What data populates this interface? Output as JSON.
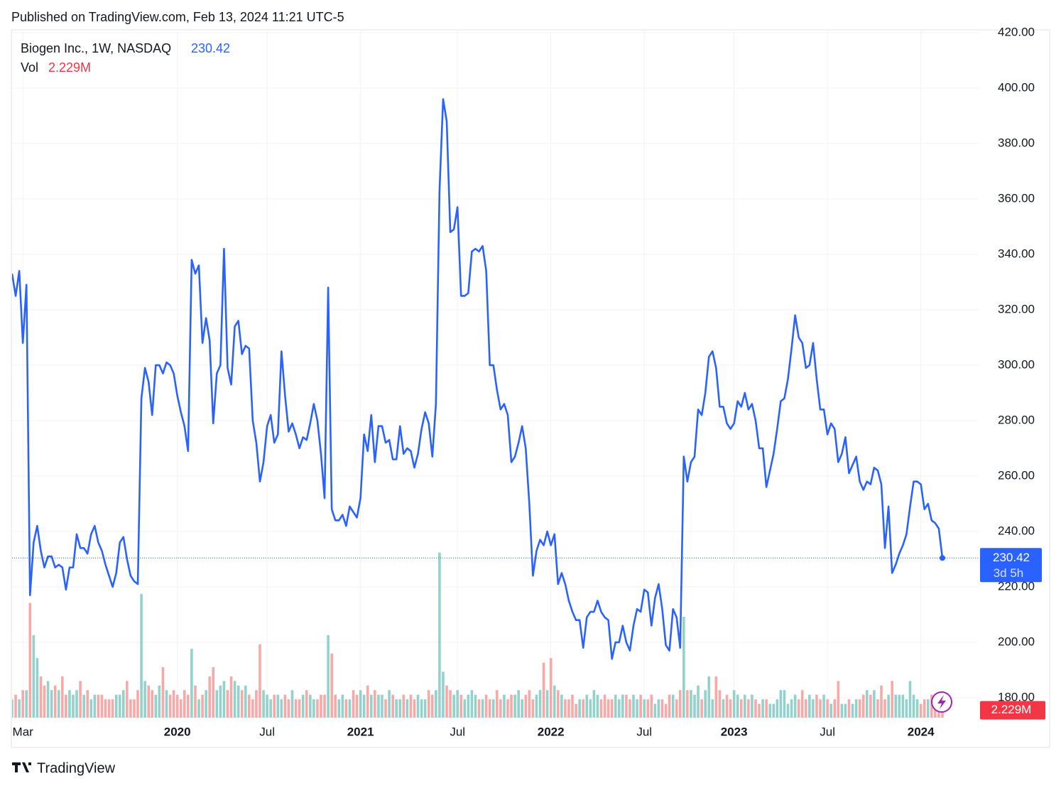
{
  "published": "Published on TradingView.com, Feb 13, 2024 11:21 UTC-5",
  "brand": "TradingView",
  "chart_data": {
    "type": "line",
    "categories": [
      null,
      null,
      null,
      "Mar",
      null,
      null,
      null,
      null,
      null,
      null,
      null,
      null,
      null,
      null,
      null,
      null,
      null,
      null,
      null,
      null,
      null,
      null,
      null,
      null,
      null,
      null,
      null,
      null,
      null,
      null,
      null,
      null,
      null,
      null,
      null,
      null,
      null,
      null,
      null,
      null,
      null,
      null,
      null,
      null,
      null,
      null,
      "2020",
      null,
      null,
      null,
      null,
      null,
      null,
      null,
      null,
      null,
      null,
      null,
      null,
      null,
      null,
      null,
      null,
      null,
      null,
      null,
      null,
      null,
      null,
      null,
      null,
      "Jul",
      null,
      null,
      null,
      null,
      null,
      null,
      null,
      null,
      null,
      null,
      null,
      null,
      null,
      null,
      null,
      null,
      null,
      null,
      null,
      null,
      null,
      null,
      null,
      null,
      null,
      "2021",
      null,
      null,
      null,
      null,
      null,
      null,
      null,
      null,
      null,
      null,
      null,
      null,
      null,
      null,
      null,
      null,
      null,
      null,
      null,
      null,
      null,
      null,
      null,
      null,
      null,
      null,
      "Jul",
      null,
      null,
      null,
      null,
      null,
      null,
      null,
      null,
      null,
      null,
      null,
      null,
      null,
      null,
      null,
      null,
      null,
      null,
      null,
      null,
      null,
      null,
      null,
      null,
      null,
      "2022",
      null,
      null,
      null,
      null,
      null,
      null,
      null,
      null,
      null,
      null,
      null,
      null,
      null,
      null,
      null,
      null,
      null,
      null,
      null,
      null,
      null,
      null,
      null,
      null,
      null,
      "Jul",
      null,
      null,
      null,
      null,
      null,
      null,
      null,
      null,
      null,
      null,
      null,
      null,
      null,
      null,
      null,
      null,
      null,
      null,
      null,
      null,
      null,
      null,
      null,
      null,
      "2023",
      null,
      null,
      null,
      null,
      null,
      null,
      null,
      null,
      null,
      null,
      null,
      null,
      null,
      null,
      null,
      null,
      null,
      null,
      null,
      null,
      null,
      null,
      null,
      null,
      null,
      "Jul",
      null,
      null,
      null,
      null,
      null,
      null,
      null,
      null,
      null,
      null,
      null,
      null,
      null,
      null,
      null,
      null,
      null,
      null,
      null,
      null,
      null,
      null,
      null,
      null,
      null,
      "2024",
      null,
      null,
      null,
      null,
      null,
      null
    ],
    "series": [
      {
        "name": "Biogen Inc., 1W, NASDAQ",
        "color": "#2962ff",
        "values": [
          333,
          325,
          334,
          308,
          329,
          217,
          236,
          242,
          233,
          227,
          231,
          231,
          227,
          228,
          227,
          219,
          227,
          227,
          239,
          234,
          234,
          232,
          239,
          242,
          236,
          233,
          228,
          224,
          220,
          225,
          236,
          238,
          230,
          224,
          222,
          221,
          288,
          299,
          294,
          282,
          300,
          300,
          297,
          301,
          300,
          297,
          289,
          283,
          278,
          269,
          338,
          333,
          336,
          308,
          317,
          309,
          279,
          297,
          300,
          342,
          299,
          293,
          314,
          316,
          304,
          307,
          306,
          280,
          272,
          258,
          265,
          278,
          282,
          272,
          275,
          305,
          289,
          276,
          279,
          275,
          270,
          274,
          273,
          279,
          286,
          280,
          268,
          252,
          328,
          248,
          244,
          244,
          246,
          242,
          249,
          247,
          245,
          252,
          275,
          269,
          282,
          265,
          278,
          278,
          272,
          273,
          266,
          266,
          278,
          268,
          270,
          269,
          263,
          268,
          277,
          283,
          279,
          267,
          286,
          363,
          396,
          388,
          348,
          349,
          357,
          325,
          325,
          326,
          341,
          342,
          341,
          343,
          334,
          300,
          300,
          291,
          284,
          286,
          282,
          265,
          267,
          272,
          278,
          270,
          250,
          224,
          233,
          237,
          235,
          240,
          235,
          239,
          221,
          225,
          221,
          215,
          211,
          208,
          208,
          198,
          209,
          211,
          211,
          215,
          211,
          209,
          208,
          194,
          200,
          200,
          206,
          200,
          197,
          206,
          212,
          211,
          219,
          218,
          206,
          216,
          221,
          212,
          199,
          197,
          212,
          209,
          198,
          267,
          258,
          265,
          267,
          284,
          282,
          290,
          303,
          305,
          299,
          285,
          285,
          279,
          277,
          279,
          287,
          285,
          290,
          284,
          286,
          280,
          270,
          270,
          256,
          262,
          268,
          277,
          287,
          288,
          295,
          306,
          318,
          310,
          308,
          299,
          300,
          308,
          295,
          284,
          284,
          275,
          279,
          277,
          265,
          268,
          274,
          261,
          264,
          267,
          258,
          255,
          258,
          257,
          263,
          262,
          257,
          234,
          249,
          225,
          228,
          232,
          235,
          239,
          249,
          258,
          258,
          257,
          248,
          250,
          244,
          243,
          241,
          230.42
        ]
      },
      {
        "name": "Vol",
        "axis": "y2",
        "up_color": "#93d2cc",
        "down_color": "#f6a9a7",
        "color": "#f23645",
        "values": [
          4,
          5,
          4,
          6,
          6,
          25,
          18,
          13,
          9,
          7,
          8,
          6,
          7,
          6,
          9,
          5,
          6,
          5,
          6,
          8,
          5,
          6,
          4,
          5,
          5,
          5,
          4,
          4,
          4,
          5,
          5,
          6,
          8,
          4,
          4,
          6,
          27,
          8,
          7,
          6,
          5,
          7,
          11,
          6,
          5,
          6,
          5,
          4,
          6,
          5,
          15,
          7,
          4,
          5,
          6,
          9,
          11,
          6,
          7,
          8,
          6,
          9,
          8,
          7,
          6,
          7,
          5,
          4,
          6,
          16,
          6,
          5,
          4,
          5,
          5,
          4,
          5,
          4,
          6,
          4,
          4,
          5,
          6,
          5,
          4,
          4,
          5,
          5,
          18,
          14,
          5,
          4,
          5,
          4,
          4,
          6,
          5,
          6,
          5,
          7,
          5,
          6,
          5,
          5,
          4,
          6,
          5,
          4,
          4,
          5,
          4,
          5,
          4,
          5,
          4,
          4,
          6,
          5,
          6,
          36,
          10,
          7,
          6,
          5,
          6,
          5,
          4,
          5,
          6,
          5,
          4,
          4,
          5,
          4,
          4,
          6,
          4,
          5,
          4,
          5,
          5,
          6,
          4,
          5,
          6,
          4,
          5,
          6,
          12,
          6,
          13,
          7,
          6,
          5,
          4,
          4,
          5,
          3,
          4,
          4,
          5,
          4,
          6,
          5,
          4,
          5,
          4,
          4,
          5,
          4,
          5,
          5,
          4,
          5,
          4,
          5,
          4,
          4,
          5,
          3,
          4,
          4,
          3,
          5,
          5,
          4,
          6,
          22,
          6,
          6,
          5,
          7,
          4,
          6,
          9,
          4,
          9,
          6,
          4,
          5,
          4,
          6,
          5,
          4,
          5,
          4,
          5,
          4,
          3,
          4,
          4,
          3,
          3,
          4,
          6,
          6,
          3,
          4,
          5,
          4,
          6,
          4,
          5,
          4,
          5,
          4,
          5,
          4,
          3,
          4,
          8,
          3,
          3,
          4,
          3,
          4,
          4,
          5,
          6,
          5,
          6,
          4,
          7,
          4,
          5,
          8,
          5,
          5,
          5,
          4,
          8,
          5,
          4,
          3,
          4,
          4,
          5,
          4,
          3,
          2.229
        ]
      }
    ],
    "volume_label": "2.229M",
    "countdown": "3d 5h",
    "ylim": [
      172.8,
      421.0
    ],
    "yticks": [
      {
        "value": 180,
        "label": "180.00"
      },
      {
        "value": 200,
        "label": "200.00"
      },
      {
        "value": 220,
        "label": "220.00"
      },
      {
        "value": 240,
        "label": "240.00"
      },
      {
        "value": 260,
        "label": "260.00"
      },
      {
        "value": 280,
        "label": "280.00"
      },
      {
        "value": 300,
        "label": "300.00"
      },
      {
        "value": 320,
        "label": "320.00"
      },
      {
        "value": 340,
        "label": "340.00"
      },
      {
        "value": 360,
        "label": "360.00"
      },
      {
        "value": 380,
        "label": "380.00"
      },
      {
        "value": 400,
        "label": "400.00"
      },
      {
        "value": 420,
        "label": "420.00"
      }
    ],
    "y2lim": [
      0,
      150
    ],
    "grid": true,
    "legend": "top-left"
  }
}
